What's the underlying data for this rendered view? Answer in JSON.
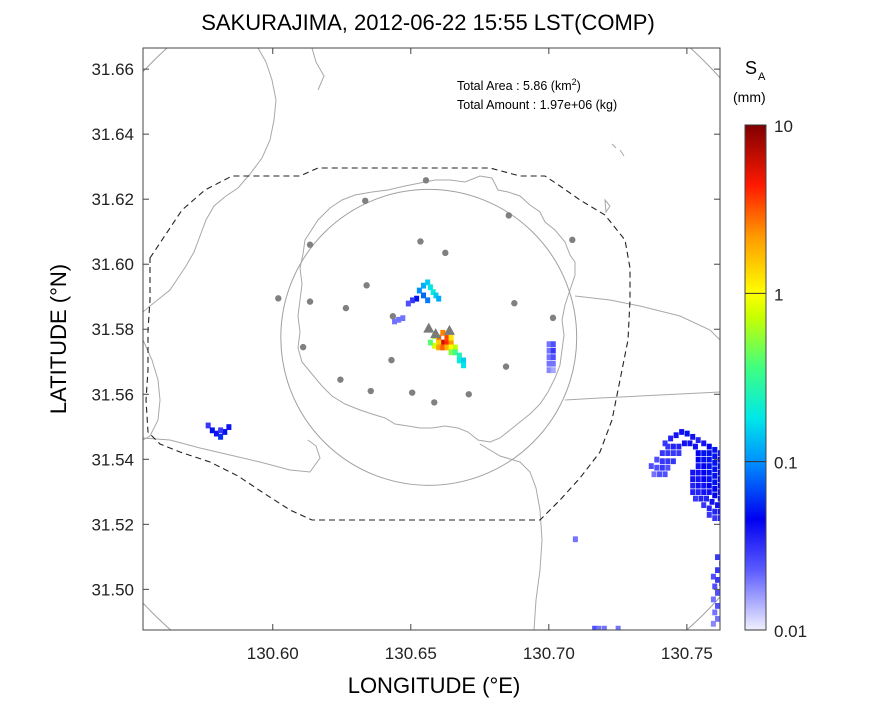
{
  "title": "SAKURAJIMA, 2012-06-22 15:55 LST(COMP)",
  "annotations": {
    "area_label": "Total Area   : 5.86 (km",
    "area_sup": "2",
    "area_close": ")",
    "amount_label": "Total Amount : 1.97e+06 (kg)"
  },
  "colorbar": {
    "symbol": "S",
    "subscript": "A",
    "unit": "(mm)",
    "scale": "log",
    "range": [
      0.01,
      10
    ],
    "ticks": [
      "10",
      "1",
      "0.1",
      "0.01"
    ],
    "colors": [
      "#e8e8ff",
      "#0000ff",
      "#00e0ff",
      "#ffff00",
      "#ff0000",
      "#800000"
    ]
  },
  "chart_data": {
    "type": "heatmap",
    "title": "SAKURAJIMA, 2012-06-22 15:55 LST(COMP)",
    "xlabel": "LONGITUDE (°E)",
    "ylabel": "LATITUDE (°N)",
    "xlim": [
      130.553,
      130.762
    ],
    "ylim": [
      31.4875,
      31.6665
    ],
    "xticks": [
      130.6,
      130.65,
      130.7,
      130.75
    ],
    "xtick_labels": [
      "130.60",
      "130.65",
      "130.70",
      "130.75"
    ],
    "yticks": [
      31.5,
      31.52,
      31.54,
      31.56,
      31.58,
      31.6,
      31.62,
      31.64,
      31.66
    ],
    "ytick_labels": [
      "31.50",
      "31.52",
      "31.54",
      "31.56",
      "31.58",
      "31.60",
      "31.62",
      "31.64",
      "31.66"
    ],
    "vents": [
      {
        "lon": 130.6565,
        "lat": 31.5802
      },
      {
        "lon": 130.659,
        "lat": 31.5785
      },
      {
        "lon": 130.664,
        "lat": 31.5795
      }
    ],
    "stations": [
      [
        130.6555,
        31.6258
      ],
      [
        130.6335,
        31.6195
      ],
      [
        130.6855,
        31.615
      ],
      [
        130.6135,
        31.606
      ],
      [
        130.6535,
        31.607
      ],
      [
        130.7085,
        31.6075
      ],
      [
        130.6625,
        31.6035
      ],
      [
        130.602,
        31.5895
      ],
      [
        130.6135,
        31.5885
      ],
      [
        130.634,
        31.5935
      ],
      [
        130.6875,
        31.588
      ],
      [
        130.6265,
        31.5865
      ],
      [
        130.6435,
        31.584
      ],
      [
        130.7015,
        31.5835
      ],
      [
        130.611,
        31.5745
      ],
      [
        130.643,
        31.5705
      ],
      [
        130.6845,
        31.5685
      ],
      [
        130.6245,
        31.5645
      ],
      [
        130.6355,
        31.561
      ],
      [
        130.6505,
        31.5605
      ],
      [
        130.671,
        31.56
      ],
      [
        130.6585,
        31.5575
      ]
    ],
    "circles": [
      {
        "center": [
          130.6565,
          31.5775
        ],
        "radius_deg_lat": 0.0455
      },
      {
        "center": [
          130.6565,
          31.5775
        ],
        "radius_deg_lat": 0.12
      }
    ],
    "ash_cells": [
      [
        130.653,
        31.592,
        0.1
      ],
      [
        130.6545,
        31.5935,
        0.12
      ],
      [
        130.656,
        31.5945,
        0.15
      ],
      [
        130.657,
        31.593,
        0.18
      ],
      [
        130.658,
        31.5915,
        0.2
      ],
      [
        130.659,
        31.5905,
        0.15
      ],
      [
        130.66,
        31.5895,
        0.12
      ],
      [
        130.6545,
        31.5905,
        0.08
      ],
      [
        130.656,
        31.589,
        0.09
      ],
      [
        130.652,
        31.5895,
        0.05
      ],
      [
        130.6505,
        31.589,
        0.03
      ],
      [
        130.649,
        31.588,
        0.025
      ],
      [
        130.647,
        31.5835,
        0.02
      ],
      [
        130.6455,
        31.583,
        0.02
      ],
      [
        130.644,
        31.5825,
        0.02
      ],
      [
        130.66,
        31.5775,
        3.0
      ],
      [
        130.6615,
        31.576,
        6.0
      ],
      [
        130.663,
        31.576,
        4.0
      ],
      [
        130.663,
        31.5775,
        3.5
      ],
      [
        130.6615,
        31.579,
        2.5
      ],
      [
        130.66,
        31.576,
        1.5
      ],
      [
        130.6585,
        31.575,
        0.8
      ],
      [
        130.66,
        31.5745,
        2.0
      ],
      [
        130.6615,
        31.5745,
        3.0
      ],
      [
        130.663,
        31.5745,
        1.8
      ],
      [
        130.6645,
        31.576,
        2.2
      ],
      [
        130.6645,
        31.5745,
        1.0
      ],
      [
        130.666,
        31.5745,
        0.7
      ],
      [
        130.6645,
        31.573,
        0.5
      ],
      [
        130.666,
        31.573,
        0.35
      ],
      [
        130.6675,
        31.572,
        0.25
      ],
      [
        130.6675,
        31.5705,
        0.2
      ],
      [
        130.669,
        31.5705,
        0.15
      ],
      [
        130.669,
        31.569,
        0.18
      ],
      [
        130.6585,
        31.578,
        0.6
      ],
      [
        130.657,
        31.576,
        0.4
      ],
      [
        130.6645,
        31.5775,
        1.2
      ],
      [
        130.7,
        31.5755,
        0.02
      ],
      [
        130.7015,
        31.5755,
        0.025
      ],
      [
        130.7,
        31.5735,
        0.02
      ],
      [
        130.7015,
        31.5735,
        0.03
      ],
      [
        130.7,
        31.5715,
        0.02
      ],
      [
        130.7015,
        31.5715,
        0.025
      ],
      [
        130.7,
        31.5695,
        0.02
      ],
      [
        130.7015,
        31.5695,
        0.02
      ],
      [
        130.7,
        31.5675,
        0.018
      ],
      [
        130.7015,
        31.5675,
        0.015
      ],
      [
        130.5765,
        31.5505,
        0.03
      ],
      [
        130.578,
        31.549,
        0.05
      ],
      [
        130.5795,
        31.548,
        0.04
      ],
      [
        130.581,
        31.547,
        0.06
      ],
      [
        130.5825,
        31.5485,
        0.05
      ],
      [
        130.584,
        31.55,
        0.04
      ],
      [
        130.581,
        31.549,
        0.03
      ],
      [
        130.7095,
        31.5155,
        0.02
      ],
      [
        130.7165,
        31.488,
        0.025
      ],
      [
        130.718,
        31.488,
        0.02
      ],
      [
        130.72,
        31.488,
        0.02
      ],
      [
        130.725,
        31.488,
        0.02
      ],
      [
        130.742,
        31.545,
        0.03
      ],
      [
        130.744,
        31.5465,
        0.035
      ],
      [
        130.746,
        31.5475,
        0.04
      ],
      [
        130.748,
        31.5485,
        0.04
      ],
      [
        130.75,
        31.548,
        0.05
      ],
      [
        130.752,
        31.547,
        0.04
      ],
      [
        130.754,
        31.546,
        0.035
      ],
      [
        130.756,
        31.545,
        0.04
      ],
      [
        130.758,
        31.544,
        0.045
      ],
      [
        130.76,
        31.543,
        0.05
      ],
      [
        130.762,
        31.542,
        0.04
      ],
      [
        130.743,
        31.544,
        0.03
      ],
      [
        130.745,
        31.544,
        0.035
      ],
      [
        130.747,
        31.544,
        0.035
      ],
      [
        130.749,
        31.545,
        0.04
      ],
      [
        130.751,
        31.545,
        0.04
      ],
      [
        130.753,
        31.544,
        0.04
      ],
      [
        130.741,
        31.542,
        0.03
      ],
      [
        130.743,
        31.542,
        0.03
      ],
      [
        130.745,
        31.542,
        0.03
      ],
      [
        130.747,
        31.542,
        0.03
      ],
      [
        130.739,
        31.54,
        0.025
      ],
      [
        130.741,
        31.5395,
        0.03
      ],
      [
        130.743,
        31.5395,
        0.03
      ],
      [
        130.745,
        31.5395,
        0.03
      ],
      [
        130.737,
        31.538,
        0.025
      ],
      [
        130.739,
        31.5375,
        0.025
      ],
      [
        130.741,
        31.5375,
        0.03
      ],
      [
        130.743,
        31.5375,
        0.025
      ],
      [
        130.738,
        31.5355,
        0.02
      ],
      [
        130.74,
        31.5355,
        0.025
      ],
      [
        130.742,
        31.5355,
        0.025
      ],
      [
        130.754,
        31.542,
        0.045
      ],
      [
        130.756,
        31.542,
        0.05
      ],
      [
        130.758,
        31.542,
        0.05
      ],
      [
        130.76,
        31.541,
        0.05
      ],
      [
        130.762,
        31.54,
        0.045
      ],
      [
        130.754,
        31.54,
        0.045
      ],
      [
        130.756,
        31.54,
        0.05
      ],
      [
        130.758,
        31.54,
        0.05
      ],
      [
        130.76,
        31.539,
        0.05
      ],
      [
        130.762,
        31.538,
        0.05
      ],
      [
        130.754,
        31.538,
        0.04
      ],
      [
        130.756,
        31.538,
        0.045
      ],
      [
        130.758,
        31.538,
        0.05
      ],
      [
        130.76,
        31.537,
        0.05
      ],
      [
        130.762,
        31.536,
        0.045
      ],
      [
        130.752,
        31.536,
        0.04
      ],
      [
        130.754,
        31.536,
        0.04
      ],
      [
        130.756,
        31.536,
        0.045
      ],
      [
        130.758,
        31.536,
        0.05
      ],
      [
        130.76,
        31.535,
        0.05
      ],
      [
        130.762,
        31.534,
        0.045
      ],
      [
        130.752,
        31.534,
        0.04
      ],
      [
        130.754,
        31.534,
        0.04
      ],
      [
        130.756,
        31.534,
        0.045
      ],
      [
        130.758,
        31.534,
        0.05
      ],
      [
        130.76,
        31.533,
        0.05
      ],
      [
        130.762,
        31.532,
        0.045
      ],
      [
        130.752,
        31.532,
        0.035
      ],
      [
        130.754,
        31.532,
        0.04
      ],
      [
        130.756,
        31.532,
        0.04
      ],
      [
        130.758,
        31.532,
        0.045
      ],
      [
        130.76,
        31.531,
        0.045
      ],
      [
        130.762,
        31.53,
        0.04
      ],
      [
        130.752,
        31.53,
        0.035
      ],
      [
        130.754,
        31.53,
        0.035
      ],
      [
        130.756,
        31.53,
        0.04
      ],
      [
        130.758,
        31.53,
        0.04
      ],
      [
        130.76,
        31.529,
        0.045
      ],
      [
        130.762,
        31.528,
        0.04
      ],
      [
        130.753,
        31.528,
        0.03
      ],
      [
        130.755,
        31.528,
        0.035
      ],
      [
        130.757,
        31.528,
        0.035
      ],
      [
        130.759,
        31.527,
        0.04
      ],
      [
        130.761,
        31.526,
        0.04
      ],
      [
        130.756,
        31.526,
        0.03
      ],
      [
        130.758,
        31.525,
        0.035
      ],
      [
        130.76,
        31.524,
        0.035
      ],
      [
        130.762,
        31.524,
        0.04
      ],
      [
        130.758,
        31.523,
        0.03
      ],
      [
        130.76,
        31.522,
        0.03
      ],
      [
        130.762,
        31.522,
        0.035
      ],
      [
        130.761,
        31.51,
        0.03
      ],
      [
        130.7625,
        31.508,
        0.035
      ],
      [
        130.761,
        31.506,
        0.03
      ],
      [
        130.7595,
        31.504,
        0.025
      ],
      [
        130.761,
        31.503,
        0.03
      ],
      [
        130.7625,
        31.502,
        0.03
      ],
      [
        130.76,
        31.501,
        0.025
      ],
      [
        130.761,
        31.499,
        0.025
      ],
      [
        130.7595,
        31.497,
        0.02
      ],
      [
        130.761,
        31.495,
        0.025
      ],
      [
        130.76,
        31.493,
        0.02
      ],
      [
        130.761,
        31.491,
        0.02
      ],
      [
        130.7595,
        31.4895,
        0.018
      ]
    ]
  }
}
